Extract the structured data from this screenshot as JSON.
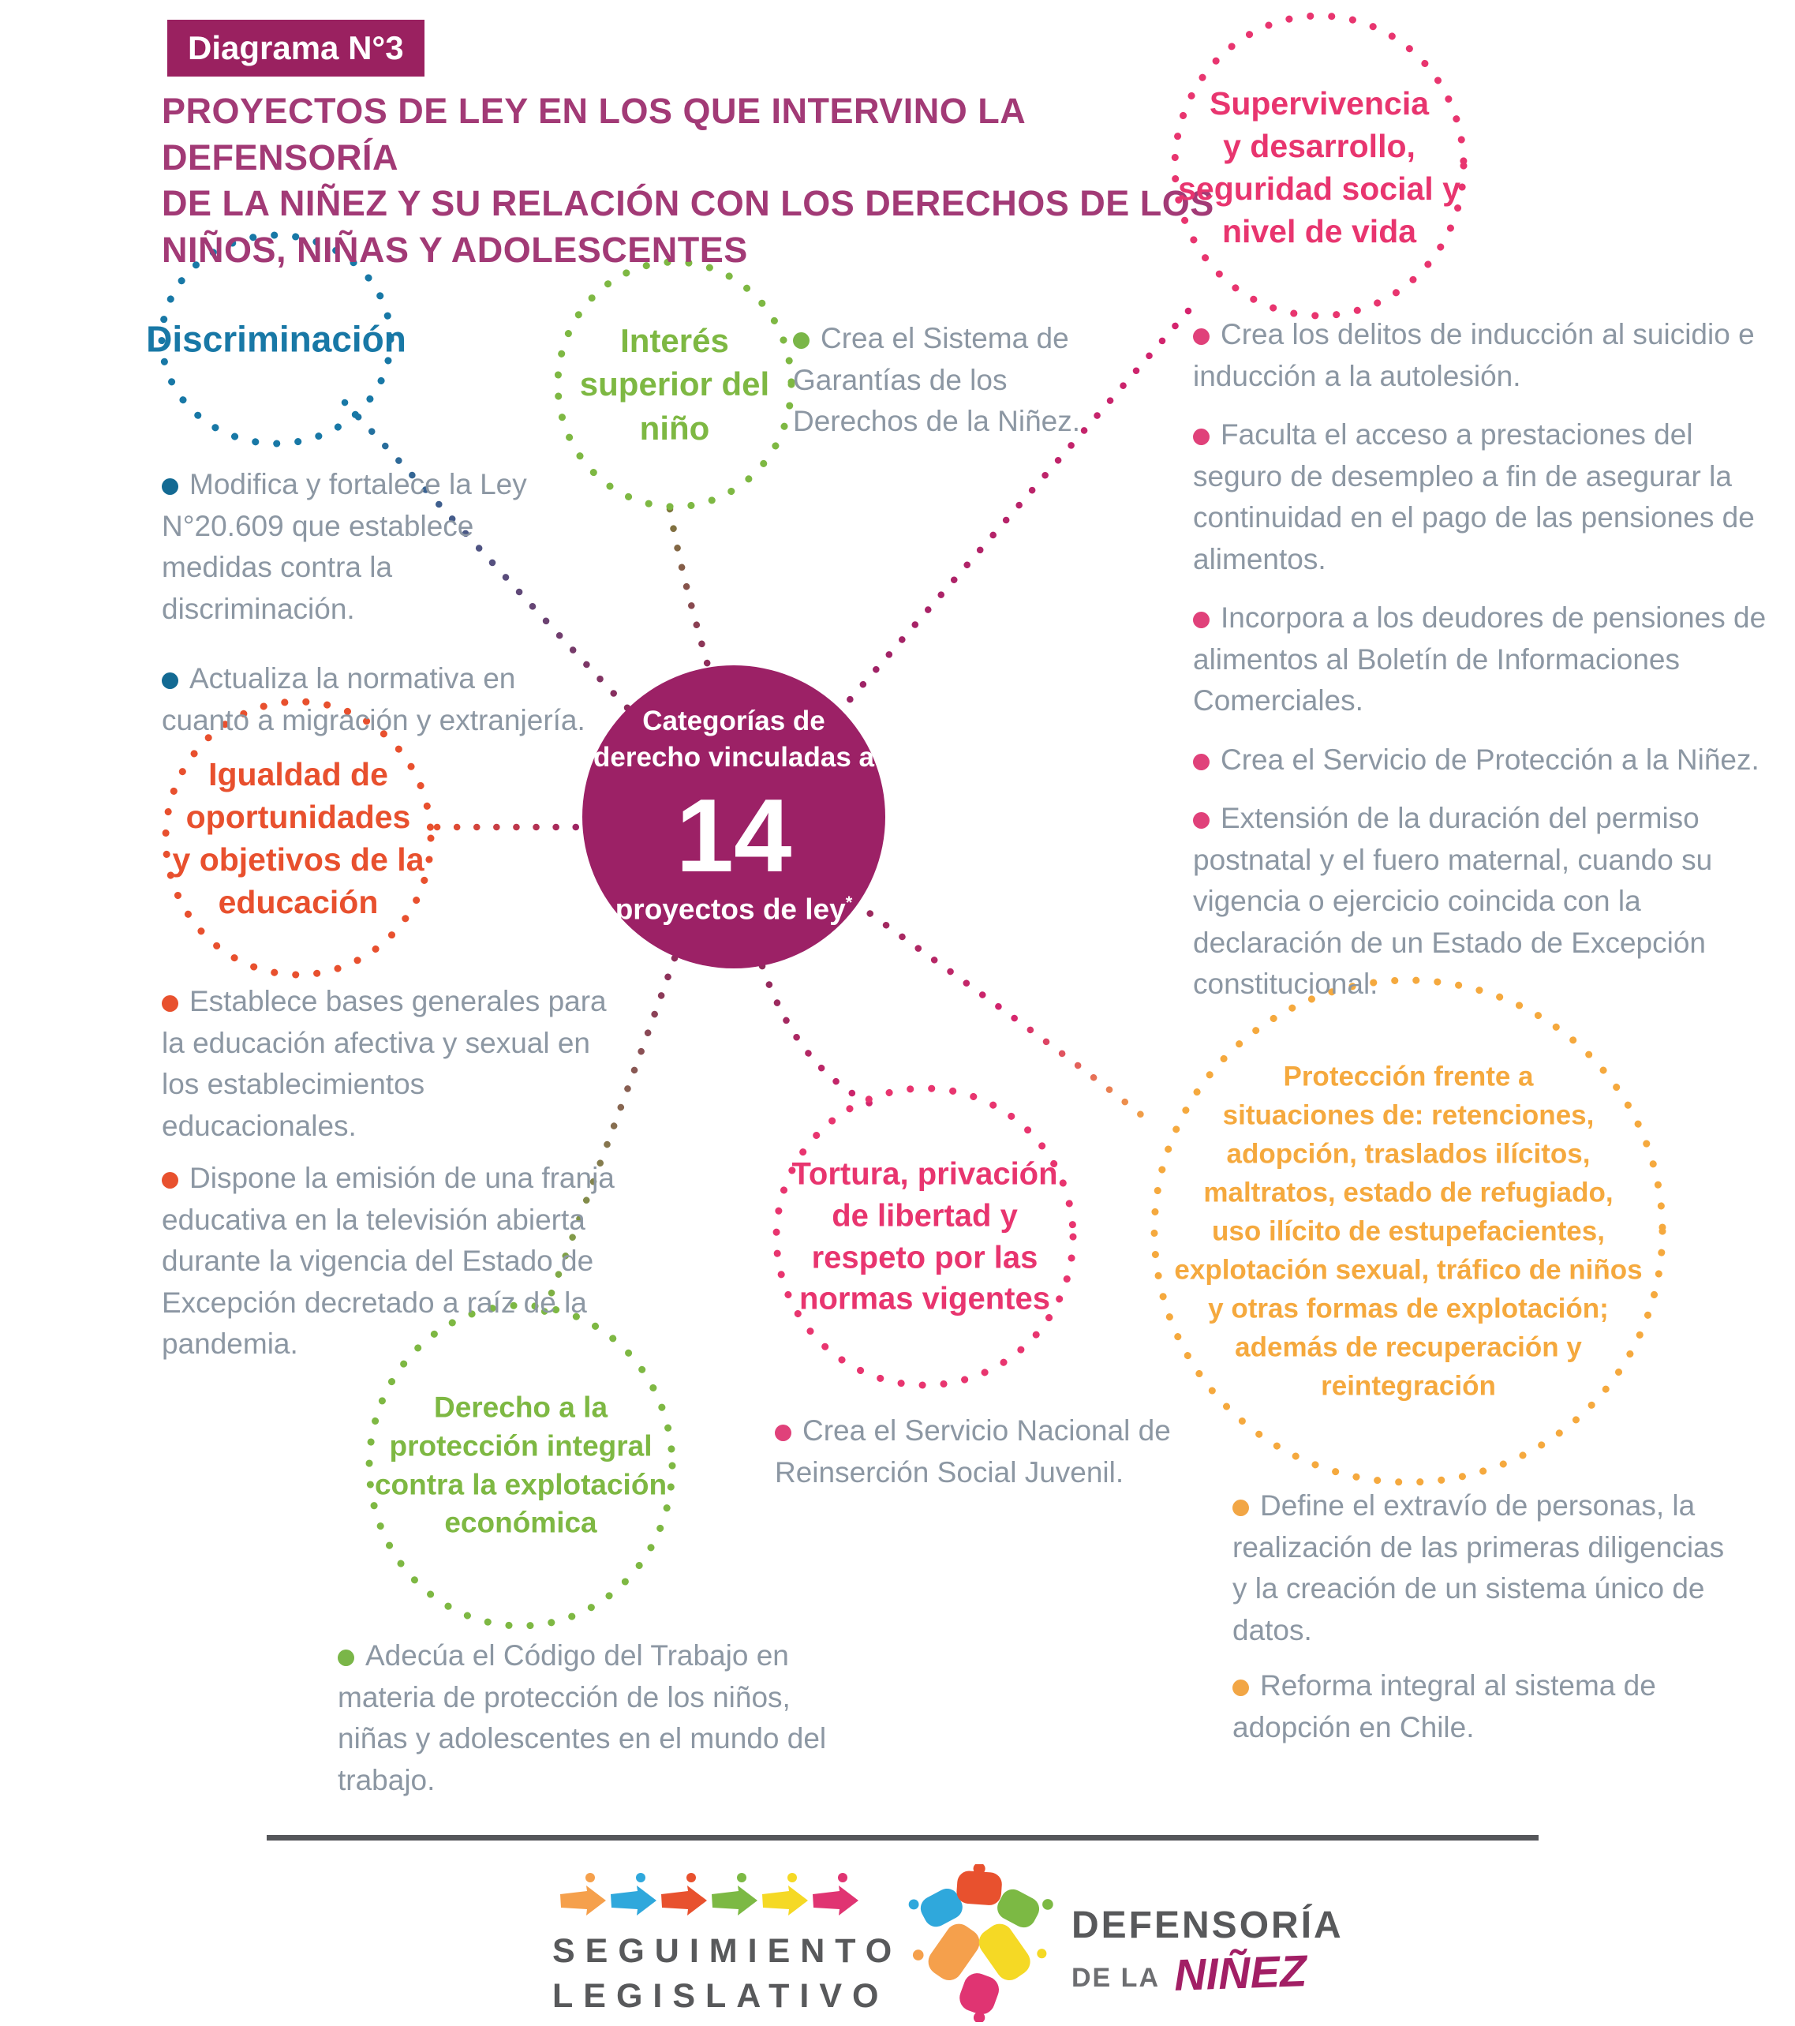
{
  "header": {
    "badge": "Diagrama N°3",
    "title_lines": [
      "PROYECTOS DE LEY EN LOS QUE INTERVINO LA DEFENSORÍA",
      "DE LA NIÑEZ Y SU RELACIÓN CON LOS DERECHOS DE LOS",
      "NIÑOS, NIÑAS Y ADOLESCENTES"
    ]
  },
  "center": {
    "top_lines": [
      "Categorías de",
      "derecho vinculadas a"
    ],
    "number": "14",
    "bottom_line": "proyectos de ley",
    "asterisk": "*",
    "circle_color": "#9C2166"
  },
  "categories": [
    {
      "id": "discriminacion",
      "label_lines": [
        "Discriminación"
      ],
      "circle_color": "#1878A6",
      "items": [
        "Modifica y fortalece la Ley N°20.609 que establece medidas contra la discriminación.",
        "Actualiza la normativa en cuanto a migración y extranjería."
      ]
    },
    {
      "id": "interes-superior",
      "label_lines": [
        "Interés",
        "superior del",
        "niño"
      ],
      "circle_color": "#7EB843",
      "items": [
        "Crea el Sistema de Garantías de los Derechos de la Niñez."
      ]
    },
    {
      "id": "supervivencia",
      "label_lines": [
        "Supervivencia",
        "y desarrollo,",
        "seguridad social y",
        "nivel de vida"
      ],
      "circle_color": "#E8356F",
      "items": [
        "Crea los delitos de inducción al suicidio e inducción a la autolesión.",
        "Faculta el acceso a prestaciones del seguro de desempleo a fin de asegurar la continuidad en el pago de las pensiones de alimentos.",
        "Incorpora a los deudores de pensiones de alimentos al Boletín de Informaciones Comerciales.",
        "Crea el Servicio de Protección a la Niñez.",
        "Extensión de la duración del permiso postnatal y el fuero maternal, cuando su vigencia o ejercicio coincida con la declaración de un Estado de Excepción constitucional."
      ]
    },
    {
      "id": "igualdad",
      "label_lines": [
        "Igualdad de",
        "oportunidades",
        "y objetivos de la",
        "educación"
      ],
      "circle_color": "#E8502E",
      "items": [
        "Establece bases generales para la educación afectiva y sexual en los establecimientos educacionales.",
        "Dispone la emisión de una franja educativa en la televisión abierta durante la vigencia del Estado de Excepción decretado a raíz de la pandemia."
      ]
    },
    {
      "id": "derecho-proteccion-integral",
      "label_lines": [
        "Derecho a la",
        "protección integral",
        "contra la explotación",
        "económica"
      ],
      "circle_color": "#7EB843",
      "items": [
        "Adecúa el Código del Trabajo en materia de protección de los niños, niñas y adolescentes en el mundo del trabajo."
      ]
    },
    {
      "id": "tortura",
      "label_lines": [
        "Tortura, privación",
        "de libertad y",
        "respeto por las",
        "normas vigentes"
      ],
      "circle_color": "#E8356F",
      "items": [
        "Crea el Servicio Nacional de Reinserción Social Juvenil."
      ]
    },
    {
      "id": "proteccion-situaciones",
      "label_lines": [
        "Protección frente a",
        "situaciones de: retenciones,",
        "adopción, traslados ilícitos,",
        "maltratos, estado de refugiado,",
        "uso ilícito de estupefacientes,",
        "explotación sexual, tráfico de niños",
        "y otras formas de explotación;",
        "además de recuperación y",
        "reintegración"
      ],
      "circle_color": "#F5A93E",
      "items": [
        "Define el extravío de personas, la realización de las primeras diligencias y la creación de un sistema único de datos.",
        "Reforma integral al sistema de adopción en Chile."
      ]
    }
  ],
  "footer": {
    "seguimiento": {
      "line1": "SEGUIMIENTO",
      "line2": "LEGISLATIVO",
      "icon": "arrow-brush-strokes-icon",
      "arrow_colors": [
        "#F5A04C",
        "#2FA8DC",
        "#E8512E",
        "#7CB944",
        "#F5D925",
        "#E03472"
      ]
    },
    "defensoria": {
      "name_top": "DEFENSORÍA",
      "name_mid": "DE LA",
      "name_accent": "NIÑEZ",
      "accent_color": "#A21F65",
      "icon": "color-blob-kite-icon",
      "blob_colors": [
        "#2FA8DC",
        "#E8512E",
        "#7CB944",
        "#F5A04C",
        "#F5D925",
        "#E03472"
      ]
    }
  },
  "palette": {
    "magenta": "#9C2166",
    "blue": "#1878A6",
    "green": "#7EB843",
    "pink": "#E8356F",
    "orange_red": "#E8502E",
    "yellow_orange": "#F5A93E",
    "body_text": "#8C97A3",
    "footer_gray": "#58595B"
  }
}
